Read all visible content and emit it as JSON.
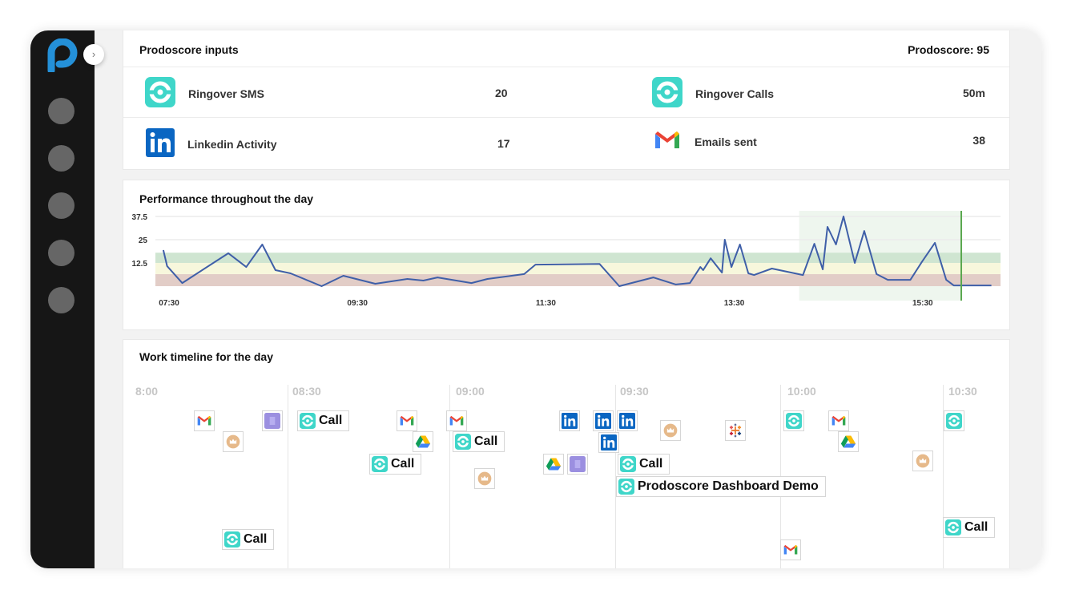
{
  "inputs": {
    "title": "Prodoscore inputs",
    "score_label": "Prodoscore: 95",
    "items": [
      {
        "label": "Ringover SMS",
        "value": "20",
        "icon": "ringover-icon"
      },
      {
        "label": "Ringover Calls",
        "value": "50m",
        "icon": "ringover-icon"
      },
      {
        "label": "Linkedin Activity",
        "value": "17",
        "icon": "linkedin-icon"
      },
      {
        "label": "Emails sent",
        "value": "38",
        "icon": "gmail-icon"
      }
    ]
  },
  "chart_data": {
    "type": "line",
    "title": "Performance throughout the day",
    "yticks": [
      "37.5",
      "25",
      "12.5"
    ],
    "ylim": [
      0,
      40
    ],
    "xticks": [
      {
        "label": "07:30",
        "t": 7.5
      },
      {
        "label": "09:30",
        "t": 9.5
      },
      {
        "label": "11:30",
        "t": 11.5
      },
      {
        "label": "13:30",
        "t": 13.5
      },
      {
        "label": "15:30",
        "t": 15.5
      }
    ],
    "bands": [
      {
        "from": 0,
        "to": 6.5,
        "color": "#e2cdc7"
      },
      {
        "from": 6.5,
        "to": 12.5,
        "color": "#f7f7dc"
      },
      {
        "from": 12.5,
        "to": 18,
        "color": "#cfe5d1"
      }
    ],
    "highlight": [
      14.19,
      15.92
    ],
    "current_time": 15.91,
    "line_color": "#3f5fa8",
    "x": [
      7.44,
      7.48,
      7.64,
      8.13,
      8.32,
      8.49,
      8.63,
      8.79,
      9.12,
      9.35,
      9.69,
      10.03,
      10.2,
      10.35,
      10.71,
      10.88,
      11.27,
      11.39,
      12.07,
      12.28,
      12.64,
      12.88,
      13.03,
      13.14,
      13.17,
      13.25,
      13.37,
      13.4,
      13.47,
      13.56,
      13.65,
      13.71,
      13.9,
      14.23,
      14.35,
      14.44,
      14.49,
      14.58,
      14.66,
      14.78,
      14.88,
      15.01,
      15.13,
      15.37,
      15.49,
      15.63,
      15.75,
      15.83,
      16.23
    ],
    "y": [
      19.4,
      10.8,
      1.7,
      17.7,
      10.3,
      22.4,
      8.6,
      6.9,
      0,
      5.6,
      1.3,
      3.9,
      3,
      4.7,
      1.7,
      3.9,
      6.5,
      11.6,
      12,
      0,
      4.7,
      0.9,
      1.7,
      10.3,
      8.6,
      15,
      7.3,
      25,
      10.3,
      22.4,
      6.9,
      6,
      9.5,
      6,
      22.8,
      9,
      31.9,
      22.4,
      37.5,
      12.5,
      29.7,
      6.5,
      3.4,
      3.4,
      12.9,
      23.3,
      3.4,
      0.4,
      0.4
    ]
  },
  "timeline": {
    "title": "Work timeline for the day",
    "hours": [
      "8:00",
      "08:30",
      "09:00",
      "09:30",
      "10:00",
      "10:30"
    ],
    "items": [
      {
        "type": "gmail"
      },
      {
        "type": "crown"
      },
      {
        "type": "calendar"
      },
      {
        "type": "ringover",
        "label": "Call"
      },
      {
        "type": "ringover",
        "label": "Call"
      },
      {
        "type": "gmail"
      },
      {
        "type": "drive"
      },
      {
        "type": "ringover",
        "label": "Call"
      },
      {
        "type": "gmail"
      },
      {
        "type": "ringover",
        "label": "Call"
      },
      {
        "type": "crown"
      },
      {
        "type": "drive"
      },
      {
        "type": "calendar"
      },
      {
        "type": "linkedin"
      },
      {
        "type": "linkedin"
      },
      {
        "type": "linkedin"
      },
      {
        "type": "linkedin"
      },
      {
        "type": "crown"
      },
      {
        "type": "tableau"
      },
      {
        "type": "ringover",
        "label": "Call"
      },
      {
        "type": "ringover",
        "label": "Prodoscore Dashboard Demo"
      },
      {
        "type": "ringover"
      },
      {
        "type": "gmail"
      },
      {
        "type": "drive"
      },
      {
        "type": "crown"
      },
      {
        "type": "gmail"
      },
      {
        "type": "ringover"
      },
      {
        "type": "ringover",
        "label": "Call"
      }
    ]
  }
}
